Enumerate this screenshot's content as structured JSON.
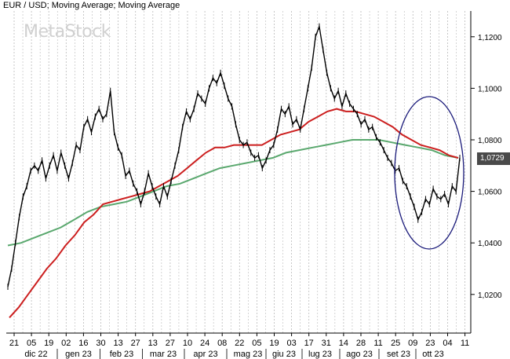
{
  "title": "EUR / USD; Moving Average; Moving Average",
  "watermark": "MetaStock",
  "last_price_label": "1,0729",
  "colors": {
    "price": "#000000",
    "ma_short": "#cc1f1f",
    "ma_long": "#5aa86e",
    "ellipse": "#1a1a7a",
    "grid": "#b9b9b9",
    "price_tag_bg": "#4a4a4a"
  },
  "chart_data": {
    "type": "line",
    "title": "EUR / USD; Moving Average; Moving Average",
    "ylim": [
      1.005,
      1.13
    ],
    "y_ticks": [
      {
        "value": 1.02,
        "label": "1,0200"
      },
      {
        "value": 1.04,
        "label": "1,0400"
      },
      {
        "value": 1.06,
        "label": "1,0600"
      },
      {
        "value": 1.08,
        "label": "1,0800"
      },
      {
        "value": 1.1,
        "label": "1,1000"
      },
      {
        "value": 1.12,
        "label": "1,1200"
      }
    ],
    "x_day_labels": [
      "21",
      "05",
      "19",
      "02",
      "16",
      "30",
      "13",
      "27",
      "13",
      "27",
      "10",
      "24",
      "08",
      "22",
      "05",
      "19",
      "03",
      "17",
      "31",
      "14",
      "28",
      "11",
      "25",
      "09",
      "23",
      "04",
      "11"
    ],
    "x_month_labels": [
      "dic 22",
      "gen 23",
      "feb 23",
      "mar 23",
      "apr 23",
      "mag 23",
      "giu 23",
      "lug 23",
      "ago 23",
      "set 23",
      "ott 23"
    ],
    "series": [
      {
        "role": "price",
        "values": [
          1.023,
          1.03,
          1.04,
          1.05,
          1.058,
          1.062,
          1.068,
          1.07,
          1.068,
          1.072,
          1.065,
          1.07,
          1.074,
          1.068,
          1.075,
          1.07,
          1.065,
          1.071,
          1.078,
          1.076,
          1.085,
          1.088,
          1.083,
          1.089,
          1.092,
          1.088,
          1.09,
          1.099,
          1.083,
          1.077,
          1.074,
          1.066,
          1.068,
          1.063,
          1.06,
          1.055,
          1.06,
          1.067,
          1.062,
          1.058,
          1.055,
          1.062,
          1.058,
          1.064,
          1.07,
          1.076,
          1.085,
          1.091,
          1.088,
          1.092,
          1.098,
          1.096,
          1.094,
          1.1,
          1.104,
          1.102,
          1.106,
          1.101,
          1.096,
          1.093,
          1.086,
          1.08,
          1.078,
          1.079,
          1.075,
          1.073,
          1.074,
          1.069,
          1.072,
          1.076,
          1.078,
          1.084,
          1.092,
          1.09,
          1.093,
          1.086,
          1.088,
          1.084,
          1.092,
          1.1,
          1.108,
          1.12,
          1.124,
          1.115,
          1.106,
          1.1,
          1.096,
          1.099,
          1.093,
          1.098,
          1.094,
          1.092,
          1.09,
          1.086,
          1.088,
          1.084,
          1.085,
          1.081,
          1.079,
          1.076,
          1.073,
          1.071,
          1.068,
          1.069,
          1.064,
          1.062,
          1.058,
          1.054,
          1.049,
          1.052,
          1.057,
          1.055,
          1.061,
          1.058,
          1.057,
          1.059,
          1.055,
          1.062,
          1.06,
          1.073
        ]
      },
      {
        "role": "moving-average-short",
        "values": [
          1.011,
          1.015,
          1.02,
          1.025,
          1.03,
          1.034,
          1.039,
          1.043,
          1.048,
          1.051,
          1.055,
          1.056,
          1.057,
          1.058,
          1.059,
          1.06,
          1.062,
          1.064,
          1.066,
          1.069,
          1.072,
          1.075,
          1.077,
          1.077,
          1.078,
          1.078,
          1.078,
          1.078,
          1.08,
          1.082,
          1.083,
          1.084,
          1.087,
          1.089,
          1.091,
          1.092,
          1.091,
          1.091,
          1.09,
          1.089,
          1.087,
          1.085,
          1.082,
          1.08,
          1.078,
          1.077,
          1.076,
          1.074,
          1.073
        ]
      },
      {
        "role": "moving-average-long",
        "values": [
          1.039,
          1.04,
          1.042,
          1.044,
          1.046,
          1.049,
          1.052,
          1.054,
          1.055,
          1.056,
          1.058,
          1.06,
          1.062,
          1.063,
          1.065,
          1.067,
          1.069,
          1.07,
          1.071,
          1.072,
          1.073,
          1.075,
          1.076,
          1.077,
          1.078,
          1.079,
          1.08,
          1.08,
          1.08,
          1.079,
          1.078,
          1.077,
          1.076,
          1.074,
          1.073
        ]
      }
    ]
  }
}
